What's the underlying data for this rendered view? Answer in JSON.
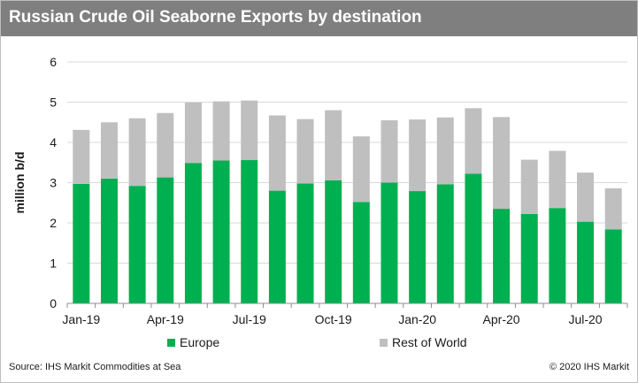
{
  "header": {
    "title": "Russian Crude Oil Seaborne Exports by destination"
  },
  "footer": {
    "source": "Source: IHS Markit Commodities at Sea",
    "copyright": "© 2020 IHS Markit"
  },
  "colors": {
    "title_bar": "#7f7f7f",
    "europe": "#00b050",
    "rest_of_world": "#bfbfbf"
  },
  "chart_data": {
    "type": "bar",
    "stacked": true,
    "title": "Russian Crude Oil Seaborne Exports by destination",
    "xlabel": "",
    "ylabel": "million b/d",
    "ylim": [
      0,
      6
    ],
    "yticks": [
      0,
      1,
      2,
      3,
      4,
      5,
      6
    ],
    "grid": true,
    "legend_position": "bottom",
    "categories": [
      "Jan-19",
      "Feb-19",
      "Mar-19",
      "Apr-19",
      "May-19",
      "Jun-19",
      "Jul-19",
      "Aug-19",
      "Sep-19",
      "Oct-19",
      "Nov-19",
      "Dec-19",
      "Jan-20",
      "Feb-20",
      "Mar-20",
      "Apr-20",
      "May-20",
      "Jun-20",
      "Jul-20",
      "Aug-20"
    ],
    "xtick_labels": [
      "Jan-19",
      "Apr-19",
      "Jul-19",
      "Oct-19",
      "Jan-20",
      "Apr-20",
      "Jul-20"
    ],
    "series": [
      {
        "name": "Europe",
        "color": "#00b050",
        "values": [
          2.97,
          3.1,
          2.92,
          3.13,
          3.49,
          3.55,
          3.56,
          2.8,
          2.98,
          3.06,
          2.52,
          3.0,
          2.79,
          2.96,
          3.22,
          2.35,
          2.22,
          2.37,
          2.03,
          1.84
        ]
      },
      {
        "name": "Rest of World",
        "color": "#bfbfbf",
        "values": [
          1.34,
          1.4,
          1.68,
          1.6,
          1.5,
          1.47,
          1.48,
          1.87,
          1.6,
          1.74,
          1.63,
          1.55,
          1.78,
          1.66,
          1.63,
          2.28,
          1.35,
          1.42,
          1.22,
          1.02
        ]
      }
    ]
  }
}
